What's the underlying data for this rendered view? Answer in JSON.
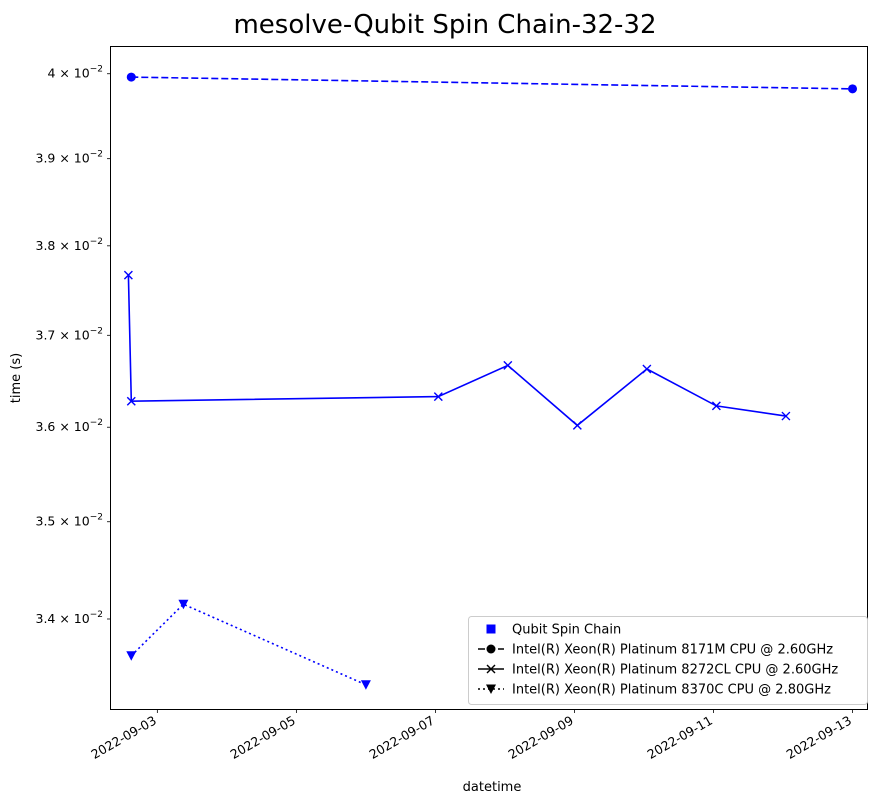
{
  "chart_data": {
    "type": "line",
    "title": "mesolve-Qubit Spin Chain-32-32",
    "xlabel": "datetime",
    "ylabel": "time (s)",
    "yscale": "log",
    "ylim": [
      0.0331,
      0.04032
    ],
    "xlim": [
      "2022-09-02T08:00",
      "2022-09-13T05:00"
    ],
    "x_ticks": [
      "2022-09-03",
      "2022-09-05",
      "2022-09-07",
      "2022-09-09",
      "2022-09-11",
      "2022-09-13"
    ],
    "y_ticks": [
      {
        "value": 0.034,
        "mantissa": "3.4",
        "base": "10",
        "exponent": "−2"
      },
      {
        "value": 0.035,
        "mantissa": "3.5",
        "base": "10",
        "exponent": "−2"
      },
      {
        "value": 0.036,
        "mantissa": "3.6",
        "base": "10",
        "exponent": "−2"
      },
      {
        "value": 0.037,
        "mantissa": "3.7",
        "base": "10",
        "exponent": "−2"
      },
      {
        "value": 0.038,
        "mantissa": "3.8",
        "base": "10",
        "exponent": "−2"
      },
      {
        "value": 0.039,
        "mantissa": "3.9",
        "base": "10",
        "exponent": "−2"
      },
      {
        "value": 0.04,
        "mantissa": "4",
        "base": "10",
        "exponent": "−2"
      }
    ],
    "grid": false,
    "legend": {
      "placement": "lower-right",
      "entries": [
        {
          "label": "Qubit Spin Chain",
          "marker": "square",
          "linestyle": "none"
        },
        {
          "label": "Intel(R) Xeon(R) Platinum 8171M CPU @ 2.60GHz",
          "marker": "circle",
          "linestyle": "dashed"
        },
        {
          "label": "Intel(R) Xeon(R) Platinum 8272CL CPU @ 2.60GHz",
          "marker": "x",
          "linestyle": "solid"
        },
        {
          "label": "Intel(R) Xeon(R) Platinum 8370C CPU @ 2.80GHz",
          "marker": "triangle-down",
          "linestyle": "dotted"
        }
      ]
    },
    "series": [
      {
        "name": "Intel(R) Xeon(R) Platinum 8171M CPU @ 2.60GHz",
        "color": "#0000ff",
        "marker": "circle",
        "linestyle": "dashed",
        "points": [
          {
            "x": "2022-09-02T15:00",
            "y": 0.03996
          },
          {
            "x": "2022-09-13T00:00",
            "y": 0.03982
          }
        ]
      },
      {
        "name": "Intel(R) Xeon(R) Platinum 8272CL CPU @ 2.60GHz",
        "color": "#0000ff",
        "marker": "x",
        "linestyle": "solid",
        "points": [
          {
            "x": "2022-09-02T14:00",
            "y": 0.03767
          },
          {
            "x": "2022-09-02T15:00",
            "y": 0.03628
          },
          {
            "x": "2022-09-07T01:00",
            "y": 0.03633
          },
          {
            "x": "2022-09-08T01:00",
            "y": 0.03667
          },
          {
            "x": "2022-09-09T01:00",
            "y": 0.03602
          },
          {
            "x": "2022-09-10T01:00",
            "y": 0.03663
          },
          {
            "x": "2022-09-11T01:00",
            "y": 0.03623
          },
          {
            "x": "2022-09-12T01:00",
            "y": 0.03612
          }
        ]
      },
      {
        "name": "Intel(R) Xeon(R) Platinum 8370C CPU @ 2.80GHz",
        "color": "#0000ff",
        "marker": "triangle-down",
        "linestyle": "dotted",
        "points": [
          {
            "x": "2022-09-02T15:00",
            "y": 0.03363
          },
          {
            "x": "2022-09-03T09:00",
            "y": 0.03415
          },
          {
            "x": "2022-09-06T00:00",
            "y": 0.03334
          }
        ]
      }
    ]
  }
}
